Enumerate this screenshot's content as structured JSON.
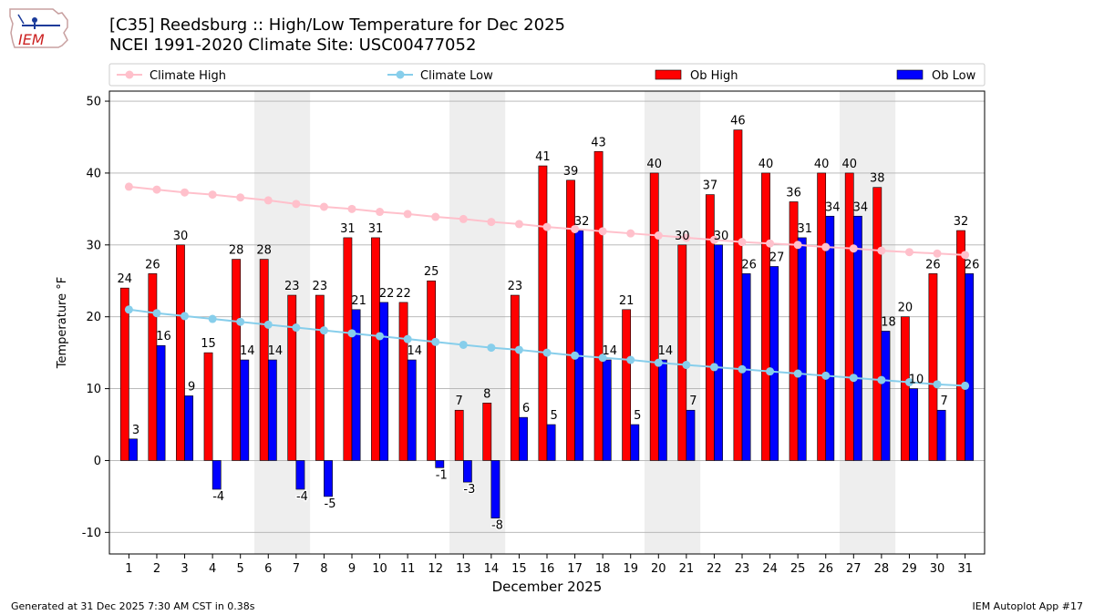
{
  "header": {
    "title_line1": "[C35] Reedsburg :: High/Low Temperature for Dec 2025",
    "title_line2": "NCEI 1991-2020 Climate Site: USC00477052"
  },
  "logo": {
    "text": "IEM"
  },
  "footer": {
    "generated": "Generated at 31 Dec 2025 7:30 AM CST in 0.38s",
    "app": "IEM Autoplot App #17"
  },
  "colors": {
    "ob_high": "#ff0000",
    "ob_low": "#0000ff",
    "climate_high": "#ffc0cb",
    "climate_low": "#87ceeb",
    "weekend_shade": "#eeeeee",
    "grid": "#b0b0b0"
  },
  "chart_data": {
    "type": "bar",
    "title": "[C35] Reedsburg :: High/Low Temperature for Dec 2025",
    "xlabel": "December 2025",
    "ylabel": "Temperature °F",
    "ylim": [
      -13,
      51.4
    ],
    "yticks": [
      -10,
      0,
      10,
      20,
      30,
      40,
      50
    ],
    "grid": "horizontal",
    "legend_position": "top",
    "categories": [
      "1",
      "2",
      "3",
      "4",
      "5",
      "6",
      "7",
      "8",
      "9",
      "10",
      "11",
      "12",
      "13",
      "14",
      "15",
      "16",
      "17",
      "18",
      "19",
      "20",
      "21",
      "22",
      "23",
      "24",
      "25",
      "26",
      "27",
      "28",
      "29",
      "30",
      "31"
    ],
    "shaded_days": [
      [
        6,
        7
      ],
      [
        13,
        14
      ],
      [
        20,
        21
      ],
      [
        27,
        28
      ]
    ],
    "series": [
      {
        "name": "Climate High",
        "kind": "line",
        "values": [
          38.1,
          37.7,
          37.3,
          37.0,
          36.6,
          36.2,
          35.7,
          35.3,
          35.0,
          34.6,
          34.3,
          33.9,
          33.6,
          33.2,
          32.9,
          32.5,
          32.2,
          31.9,
          31.6,
          31.3,
          31.0,
          30.7,
          30.4,
          30.2,
          30.0,
          29.7,
          29.5,
          29.2,
          29.0,
          28.8,
          28.6
        ]
      },
      {
        "name": "Climate Low",
        "kind": "line",
        "values": [
          21.0,
          20.5,
          20.1,
          19.7,
          19.3,
          18.9,
          18.5,
          18.1,
          17.7,
          17.3,
          16.9,
          16.5,
          16.1,
          15.7,
          15.4,
          15.0,
          14.6,
          14.3,
          14.0,
          13.6,
          13.3,
          13.0,
          12.7,
          12.4,
          12.1,
          11.8,
          11.5,
          11.2,
          10.9,
          10.6,
          10.4
        ]
      },
      {
        "name": "Ob High",
        "kind": "bar",
        "values": [
          24,
          26,
          30,
          15,
          28,
          28,
          23,
          23,
          31,
          31,
          22,
          25,
          7,
          8,
          23,
          41,
          39,
          43,
          21,
          40,
          30,
          37,
          46,
          40,
          36,
          40,
          40,
          38,
          20,
          26,
          32
        ]
      },
      {
        "name": "Ob Low",
        "kind": "bar",
        "values": [
          3,
          16,
          9,
          -4,
          14,
          14,
          -4,
          -5,
          21,
          22,
          14,
          -1,
          -3,
          -8,
          6,
          5,
          32,
          14,
          5,
          14,
          7,
          30,
          26,
          27,
          31,
          34,
          34,
          18,
          10,
          7,
          26
        ]
      }
    ]
  }
}
